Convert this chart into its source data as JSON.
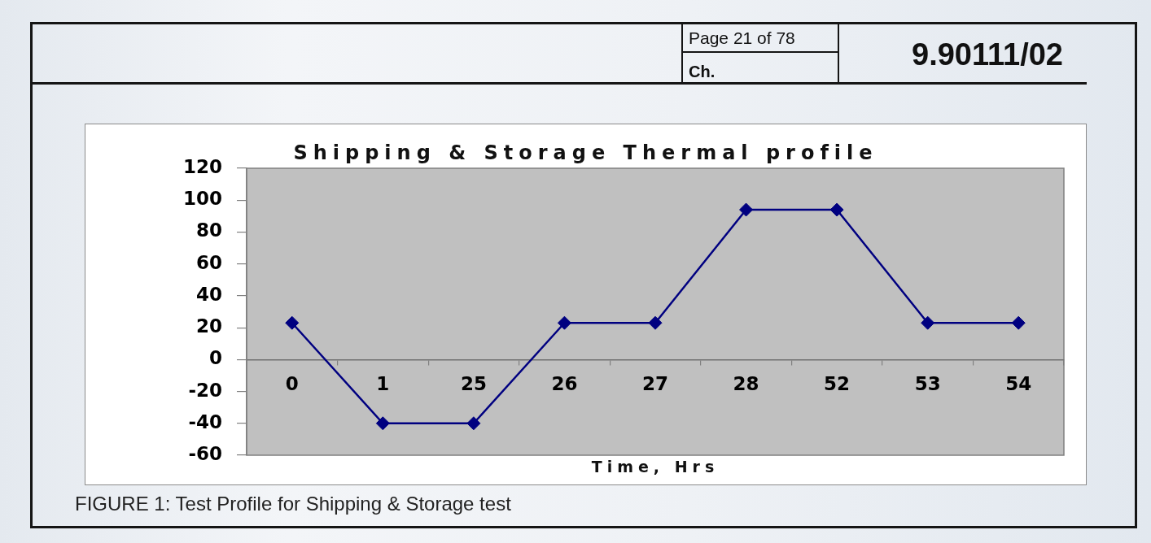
{
  "chart_data": {
    "type": "line",
    "title": "Shipping & Storage Thermal profile",
    "xlabel": "Time, Hrs",
    "annotations": [
      "Page 21 of 78",
      "Ch.",
      "9.90111/02",
      "FIGURE 1: Test Profile for Shipping & Storage test"
    ],
    "categories": [
      "0",
      "1",
      "25",
      "26",
      "27",
      "28",
      "52",
      "53",
      "54"
    ],
    "series": [
      {
        "color": "#000080",
        "values": [
          23,
          -40,
          -40,
          23,
          23,
          94,
          94,
          23,
          23
        ]
      }
    ],
    "ylim": [
      -60,
      120
    ],
    "yticks": [
      -60,
      -40,
      -20,
      0,
      20,
      40,
      60,
      80,
      100,
      120
    ],
    "marker": "diamond",
    "line_style": "solid"
  }
}
